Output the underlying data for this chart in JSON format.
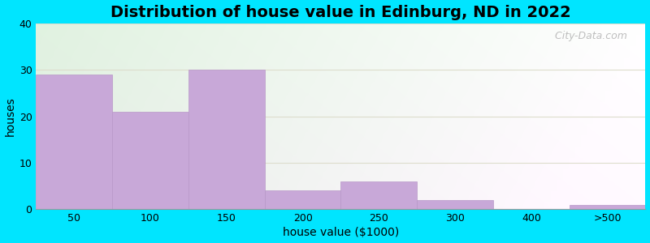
{
  "title": "Distribution of house value in Edinburg, ND in 2022",
  "xlabel": "house value ($1000)",
  "ylabel": "houses",
  "bar_labels": [
    "50",
    "100",
    "150",
    "200",
    "250",
    "300",
    "400",
    ">500"
  ],
  "bar_values": [
    29,
    21,
    30,
    4,
    6,
    2,
    0,
    1
  ],
  "bar_color": "#c8a8d8",
  "bar_edgecolor": "#b898c8",
  "ylim": [
    0,
    40
  ],
  "yticks": [
    0,
    10,
    20,
    30,
    40
  ],
  "outer_bg": "#00e5ff",
  "title_fontsize": 14,
  "axis_fontsize": 10,
  "watermark": " City-Data.com",
  "grid_color": "#ddddcc",
  "figsize": [
    8.0,
    3.0
  ],
  "dpi": 100
}
